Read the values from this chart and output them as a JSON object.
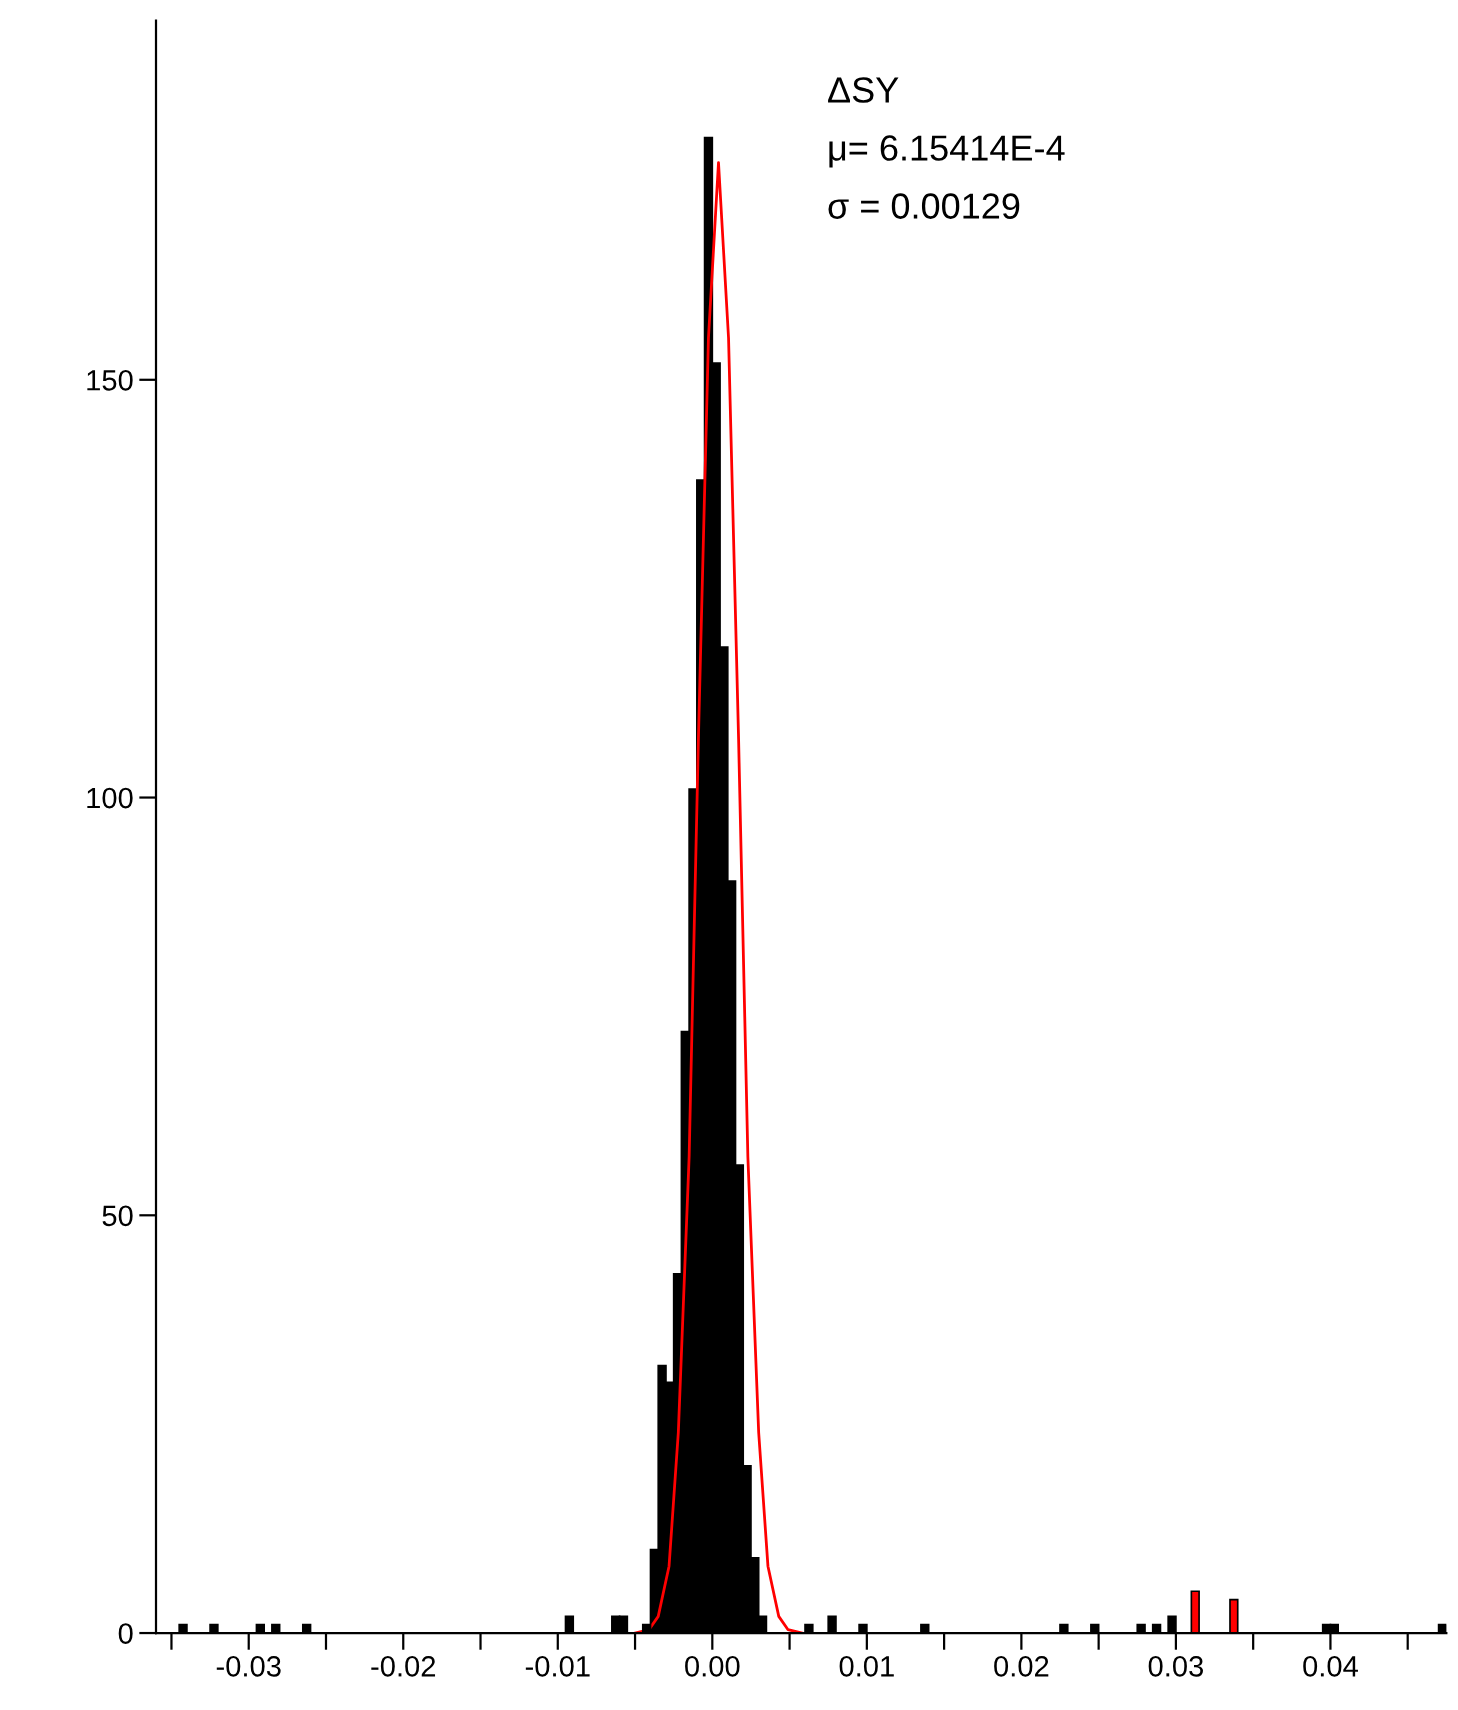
{
  "chart_data": {
    "type": "histogram",
    "series": [
      {
        "bins": [
          -0.0345,
          -0.034,
          -0.0325,
          -0.032,
          -0.0295,
          -0.029,
          -0.0285,
          -0.028,
          -0.0265,
          -0.026,
          -0.0095,
          -0.009,
          -0.0065,
          -0.006,
          -0.0055,
          -0.0045,
          -0.004,
          -0.0035,
          -0.003,
          -0.0025,
          -0.002,
          -0.0015,
          -0.001,
          -0.0005,
          0,
          0.0005,
          0.001,
          0.0015,
          0.002,
          0.0025,
          0.003,
          0.0035,
          0.006,
          0.0065,
          0.0075,
          0.008,
          0.0095,
          0.01,
          0.0135,
          0.014,
          0.0225,
          0.023,
          0.0245,
          0.025,
          0.0275,
          0.028,
          0.0285,
          0.029,
          0.0295,
          0.03,
          0.031,
          0.0315,
          0.0335,
          0.034,
          0.0395,
          0.04,
          0.0405,
          0.047,
          0.0475
        ],
        "values": [
          1,
          0,
          1,
          0,
          1,
          0,
          1,
          0,
          1,
          0,
          2,
          0,
          2,
          2,
          0,
          1,
          10,
          32,
          30,
          43,
          72,
          101,
          138,
          179,
          152,
          118,
          90,
          56,
          20,
          9,
          2,
          0,
          1,
          0,
          2,
          0,
          1,
          0,
          1,
          0,
          1,
          0,
          1,
          0,
          1,
          0,
          1,
          0,
          2,
          0,
          5,
          0,
          4,
          0,
          1,
          1,
          0,
          1
        ],
        "colors": [
          "#000000",
          "#000000",
          "#000000",
          "#000000",
          "#000000",
          "#000000",
          "#000000",
          "#000000",
          "#000000",
          "#000000",
          "#000000",
          "#000000",
          "#000000",
          "#000000",
          "#000000",
          "#000000",
          "#000000",
          "#000000",
          "#000000",
          "#000000",
          "#000000",
          "#000000",
          "#000000",
          "#000000",
          "#000000",
          "#000000",
          "#000000",
          "#000000",
          "#000000",
          "#000000",
          "#000000",
          "#000000",
          "#000000",
          "#000000",
          "#000000",
          "#000000",
          "#000000",
          "#000000",
          "#000000",
          "#000000",
          "#000000",
          "#000000",
          "#000000",
          "#000000",
          "#000000",
          "#000000",
          "#000000",
          "#000000",
          "#000000",
          "#000000",
          "#ff0000",
          "#000000",
          "#ff0000",
          "#000000",
          "#000000",
          "#000000",
          "#000000",
          "#000000"
        ]
      },
      {
        "type": "line",
        "color": "#ff0000",
        "x": [
          -0.005,
          -0.0041,
          -0.0035,
          -0.0028,
          -0.0022,
          -0.0015,
          -0.0009,
          -0.00025,
          0.0004,
          0.00105,
          0.0017,
          0.0023,
          0.003,
          0.0036,
          0.0043,
          0.0049,
          0.0058
        ],
        "values": [
          0,
          0.4,
          2,
          8,
          24,
          57,
          107,
          155,
          176,
          155,
          107,
          57,
          24,
          8,
          2,
          0.4,
          0
        ]
      }
    ],
    "annotations": [
      "ΔSY",
      "μ= 6.15414E-4",
      "σ = 0.00129"
    ],
    "xlim": [
      -0.036,
      0.0475
    ],
    "xticks": [
      {
        "value": -0.035,
        "label": null
      },
      {
        "value": -0.03,
        "label": "-0.03"
      },
      {
        "value": -0.025,
        "label": null
      },
      {
        "value": -0.02,
        "label": "-0.02"
      },
      {
        "value": -0.015,
        "label": null
      },
      {
        "value": -0.01,
        "label": "-0.01"
      },
      {
        "value": -0.005,
        "label": null
      },
      {
        "value": 0,
        "label": "0.00"
      },
      {
        "value": 0.005,
        "label": null
      },
      {
        "value": 0.01,
        "label": "0.01"
      },
      {
        "value": 0.015,
        "label": null
      },
      {
        "value": 0.02,
        "label": "0.02"
      },
      {
        "value": 0.025,
        "label": null
      },
      {
        "value": 0.03,
        "label": "0.03"
      },
      {
        "value": 0.035,
        "label": null
      },
      {
        "value": 0.04,
        "label": "0.04"
      },
      {
        "value": 0.045,
        "label": null
      }
    ],
    "ylim": [
      0,
      193
    ],
    "yticks": [
      0,
      50,
      100,
      150
    ],
    "grid": false,
    "legend": false
  }
}
